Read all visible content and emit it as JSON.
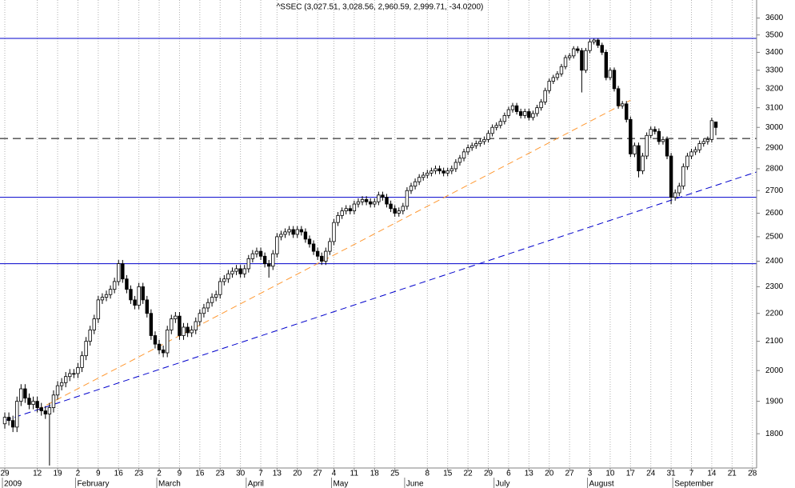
{
  "chart_data": {
    "type": "candlestick",
    "title": "^SSEC (3,027.51, 3,028.56, 2,960.59, 2,999.71, -34.0200)",
    "log_scale": true,
    "ylim": [
      1700,
      3710
    ],
    "yticks": [
      1800,
      1900,
      2000,
      2100,
      2200,
      2300,
      2400,
      2500,
      2600,
      2700,
      2800,
      2900,
      3000,
      3100,
      3200,
      3300,
      3400,
      3500,
      3600
    ],
    "grid": true,
    "up_color": "#ffffff",
    "down_color": "#000000",
    "categories": [
      "29",
      null,
      null,
      null,
      null,
      null,
      null,
      null,
      "12",
      null,
      null,
      null,
      null,
      "19",
      null,
      null,
      null,
      null,
      "2",
      null,
      null,
      null,
      null,
      "9",
      null,
      null,
      null,
      null,
      "16",
      null,
      null,
      null,
      null,
      "23",
      null,
      null,
      null,
      null,
      "2",
      null,
      null,
      null,
      null,
      "9",
      null,
      null,
      null,
      null,
      "16",
      null,
      null,
      null,
      null,
      "23",
      null,
      null,
      null,
      null,
      "30",
      null,
      null,
      null,
      null,
      "7",
      null,
      null,
      null,
      "13",
      null,
      null,
      null,
      null,
      "20",
      null,
      null,
      null,
      null,
      "27",
      null,
      null,
      null,
      "4",
      null,
      null,
      null,
      null,
      "11",
      null,
      null,
      null,
      null,
      "18",
      null,
      null,
      null,
      null,
      "25",
      null,
      null,
      null,
      null,
      null,
      null,
      null,
      "8",
      null,
      null,
      null,
      null,
      "15",
      null,
      null,
      null,
      null,
      "22",
      null,
      null,
      null,
      null,
      "29",
      null,
      null,
      null,
      null,
      "6",
      null,
      null,
      null,
      null,
      "13",
      null,
      null,
      null,
      null,
      "20",
      null,
      null,
      null,
      null,
      "27",
      null,
      null,
      null,
      null,
      "3",
      null,
      null,
      null,
      null,
      "10",
      null,
      null,
      null,
      null,
      "17",
      null,
      null,
      null,
      null,
      "24",
      null,
      null,
      null,
      null,
      "31",
      null,
      null,
      null,
      null,
      "7",
      null,
      null,
      null,
      null,
      "14",
      null,
      null,
      null,
      null,
      "21",
      null,
      null,
      null,
      null,
      "28",
      null
    ],
    "month_labels": [
      "2009",
      null,
      null,
      null,
      null,
      null,
      null,
      null,
      null,
      null,
      null,
      null,
      null,
      null,
      null,
      null,
      null,
      null,
      "February",
      null,
      null,
      null,
      null,
      null,
      null,
      null,
      null,
      null,
      null,
      null,
      null,
      null,
      null,
      null,
      null,
      null,
      null,
      null,
      "March",
      null,
      null,
      null,
      null,
      null,
      null,
      null,
      null,
      null,
      null,
      null,
      null,
      null,
      null,
      null,
      null,
      null,
      null,
      null,
      null,
      null,
      "April",
      null,
      null,
      null,
      null,
      null,
      null,
      null,
      null,
      null,
      null,
      null,
      null,
      null,
      null,
      null,
      null,
      null,
      null,
      null,
      null,
      "May",
      null,
      null,
      null,
      null,
      null,
      null,
      null,
      null,
      null,
      null,
      null,
      null,
      null,
      null,
      null,
      null,
      null,
      "June",
      null,
      null,
      null,
      null,
      null,
      null,
      null,
      null,
      null,
      null,
      null,
      null,
      null,
      null,
      null,
      null,
      null,
      null,
      null,
      null,
      null,
      "July",
      null,
      null,
      null,
      null,
      null,
      null,
      null,
      null,
      null,
      null,
      null,
      null,
      null,
      null,
      null,
      null,
      null,
      null,
      null,
      null,
      null,
      null,
      "August",
      null,
      null,
      null,
      null,
      null,
      null,
      null,
      null,
      null,
      null,
      null,
      null,
      null,
      null,
      null,
      null,
      null,
      null,
      null,
      null,
      "September",
      null,
      null,
      null,
      null,
      null,
      null,
      null,
      null,
      null,
      null,
      null,
      null,
      null,
      null,
      null,
      null,
      null,
      null,
      null,
      null
    ],
    "open": [
      1830,
      1850,
      1840,
      1820,
      1900,
      1940,
      1910,
      1890,
      1900,
      1880,
      1870,
      1860,
      1880,
      1920,
      1950,
      1960,
      1980,
      1990,
      1990,
      2010,
      2050,
      2100,
      2140,
      2180,
      2250,
      2260,
      2270,
      2290,
      2320,
      2390,
      2330,
      2290,
      2250,
      2230,
      2300,
      2250,
      2200,
      2120,
      2090,
      2070,
      2060,
      2140,
      2180,
      2190,
      2120,
      2150,
      2130,
      2140,
      2170,
      2200,
      2220,
      2240,
      2260,
      2270,
      2320,
      2330,
      2350,
      2360,
      2370,
      2350,
      2370,
      2410,
      2430,
      2440,
      2420,
      2390,
      2380,
      2430,
      2500,
      2510,
      2520,
      2530,
      2510,
      2530,
      2520,
      2490,
      2470,
      2440,
      2420,
      2400,
      2440,
      2480,
      2560,
      2590,
      2610,
      2620,
      2610,
      2640,
      2650,
      2660,
      2650,
      2640,
      2650,
      2680,
      2670,
      2640,
      2620,
      2600,
      2610,
      2630,
      2700,
      2720,
      2740,
      2760,
      2770,
      2780,
      2790,
      2800,
      2790,
      2780,
      2790,
      2800,
      2830,
      2850,
      2880,
      2900,
      2910,
      2920,
      2930,
      2940,
      2970,
      3000,
      3010,
      3030,
      3060,
      3090,
      3110,
      3080,
      3060,
      3080,
      3050,
      3070,
      3100,
      3130,
      3190,
      3240,
      3260,
      3280,
      3320,
      3370,
      3380,
      3420,
      3410,
      3300,
      3410,
      3460,
      3470,
      3440,
      3400,
      3260,
      3300,
      3200,
      3110,
      3120,
      3040,
      2870,
      2910,
      2790,
      2860,
      2960,
      2990,
      2980,
      2930,
      2940,
      2860,
      2670,
      2690,
      2720,
      2810,
      2860,
      2880,
      2890,
      2920,
      2930,
      2940,
      3027.51,
      null,
      null,
      null,
      null,
      null,
      null,
      null,
      null,
      null,
      null
    ],
    "high": [
      1865,
      1865,
      1855,
      1915,
      1955,
      1955,
      1925,
      1915,
      1915,
      1895,
      1885,
      1895,
      1935,
      1965,
      1975,
      1995,
      2005,
      2005,
      2025,
      2065,
      2115,
      2155,
      2195,
      2265,
      2275,
      2285,
      2305,
      2335,
      2405,
      2405,
      2345,
      2305,
      2265,
      2315,
      2315,
      2265,
      2215,
      2135,
      2105,
      2085,
      2155,
      2195,
      2205,
      2205,
      2165,
      2165,
      2155,
      2185,
      2215,
      2235,
      2255,
      2275,
      2285,
      2335,
      2345,
      2365,
      2375,
      2385,
      2385,
      2385,
      2425,
      2445,
      2455,
      2455,
      2435,
      2405,
      2445,
      2515,
      2525,
      2535,
      2545,
      2545,
      2545,
      2545,
      2535,
      2505,
      2485,
      2455,
      2435,
      2455,
      2495,
      2575,
      2605,
      2625,
      2635,
      2635,
      2655,
      2665,
      2675,
      2675,
      2665,
      2665,
      2695,
      2695,
      2685,
      2655,
      2635,
      2625,
      2645,
      2715,
      2735,
      2755,
      2775,
      2785,
      2795,
      2805,
      2815,
      2815,
      2805,
      2805,
      2815,
      2845,
      2865,
      2895,
      2915,
      2925,
      2935,
      2945,
      2955,
      2985,
      3015,
      3025,
      3045,
      3075,
      3105,
      3125,
      3125,
      3095,
      3095,
      3095,
      3085,
      3115,
      3145,
      3205,
      3255,
      3275,
      3295,
      3335,
      3385,
      3395,
      3435,
      3435,
      3425,
      3425,
      3475,
      3478,
      3480,
      3455,
      3415,
      3315,
      3315,
      3215,
      3135,
      3135,
      3055,
      2925,
      2925,
      2875,
      2975,
      3005,
      3005,
      2995,
      2955,
      2955,
      2875,
      2705,
      2735,
      2825,
      2875,
      2895,
      2905,
      2935,
      2945,
      2955,
      3049,
      3028.56,
      null,
      null,
      null,
      null,
      null,
      null,
      null,
      null,
      null,
      null
    ],
    "low": [
      1815,
      1825,
      1805,
      1805,
      1885,
      1895,
      1875,
      1875,
      1865,
      1855,
      1845,
      1707,
      1865,
      1905,
      1935,
      1945,
      1965,
      1975,
      1975,
      1995,
      2035,
      2085,
      2125,
      2165,
      2235,
      2245,
      2255,
      2275,
      2305,
      2315,
      2275,
      2235,
      2215,
      2215,
      2235,
      2185,
      2105,
      2075,
      2055,
      2045,
      2045,
      2125,
      2165,
      2105,
      2105,
      2115,
      2115,
      2125,
      2155,
      2185,
      2205,
      2225,
      2245,
      2255,
      2305,
      2315,
      2335,
      2345,
      2335,
      2335,
      2355,
      2395,
      2415,
      2405,
      2375,
      2335,
      2365,
      2415,
      2485,
      2495,
      2505,
      2495,
      2495,
      2505,
      2475,
      2455,
      2425,
      2405,
      2385,
      2385,
      2425,
      2465,
      2545,
      2575,
      2595,
      2595,
      2595,
      2625,
      2635,
      2635,
      2625,
      2625,
      2635,
      2655,
      2625,
      2605,
      2585,
      2585,
      2595,
      2615,
      2685,
      2705,
      2725,
      2745,
      2755,
      2765,
      2775,
      2775,
      2765,
      2765,
      2775,
      2785,
      2815,
      2835,
      2865,
      2885,
      2895,
      2905,
      2915,
      2925,
      2955,
      2985,
      2995,
      3015,
      3045,
      3075,
      3065,
      3045,
      3045,
      3035,
      3035,
      3055,
      3085,
      3115,
      3175,
      3225,
      3245,
      3265,
      3305,
      3355,
      3365,
      3395,
      3180,
      3285,
      3395,
      3445,
      3425,
      3385,
      3245,
      3245,
      3185,
      3095,
      3095,
      3025,
      2855,
      2855,
      2760,
      2775,
      2845,
      2945,
      2965,
      2915,
      2915,
      2845,
      2640,
      2655,
      2675,
      2705,
      2795,
      2845,
      2865,
      2875,
      2905,
      2915,
      2925,
      2960.59,
      null,
      null,
      null,
      null,
      null,
      null,
      null,
      null,
      null,
      null
    ],
    "close": [
      1850,
      1840,
      1820,
      1900,
      1940,
      1910,
      1890,
      1900,
      1880,
      1870,
      1860,
      1880,
      1920,
      1950,
      1960,
      1980,
      1990,
      1990,
      2010,
      2050,
      2100,
      2140,
      2180,
      2250,
      2260,
      2270,
      2290,
      2320,
      2390,
      2330,
      2290,
      2250,
      2230,
      2300,
      2250,
      2200,
      2120,
      2090,
      2070,
      2060,
      2140,
      2180,
      2190,
      2120,
      2150,
      2130,
      2140,
      2170,
      2200,
      2220,
      2240,
      2260,
      2270,
      2320,
      2330,
      2350,
      2360,
      2370,
      2350,
      2370,
      2410,
      2430,
      2440,
      2420,
      2390,
      2380,
      2430,
      2500,
      2510,
      2520,
      2530,
      2510,
      2530,
      2520,
      2490,
      2470,
      2440,
      2420,
      2400,
      2440,
      2480,
      2560,
      2590,
      2610,
      2620,
      2610,
      2640,
      2650,
      2660,
      2650,
      2640,
      2650,
      2680,
      2670,
      2640,
      2620,
      2600,
      2610,
      2630,
      2700,
      2720,
      2740,
      2760,
      2770,
      2780,
      2790,
      2800,
      2790,
      2780,
      2790,
      2800,
      2830,
      2850,
      2880,
      2900,
      2910,
      2920,
      2930,
      2940,
      2970,
      3000,
      3010,
      3030,
      3060,
      3090,
      3110,
      3080,
      3060,
      3080,
      3050,
      3070,
      3100,
      3130,
      3190,
      3240,
      3260,
      3280,
      3320,
      3370,
      3380,
      3420,
      3410,
      3300,
      3410,
      3460,
      3470,
      3440,
      3400,
      3260,
      3300,
      3200,
      3110,
      3120,
      3040,
      2870,
      2910,
      2790,
      2860,
      2960,
      2990,
      2980,
      2930,
      2940,
      2860,
      2670,
      2690,
      2720,
      2810,
      2860,
      2880,
      2890,
      2920,
      2930,
      2940,
      3034,
      2999.71,
      null,
      null,
      null,
      null,
      null,
      null,
      null,
      null,
      null,
      null
    ],
    "levels": [
      {
        "value": 3480,
        "color": "#0000cc",
        "style": "solid"
      },
      {
        "value": 2945,
        "color": "#000000",
        "style": "dashed"
      },
      {
        "value": 2670,
        "color": "#0000cc",
        "style": "solid"
      },
      {
        "value": 2390,
        "color": "#0000cc",
        "style": "solid"
      }
    ],
    "trendlines": [
      {
        "from": [
          8,
          1873
        ],
        "to": [
          154,
          3139
        ],
        "color": "#ff9933"
      },
      {
        "from": [
          0,
          1840
        ],
        "to": [
          185,
          2785
        ],
        "color": "#0000cc"
      }
    ]
  }
}
